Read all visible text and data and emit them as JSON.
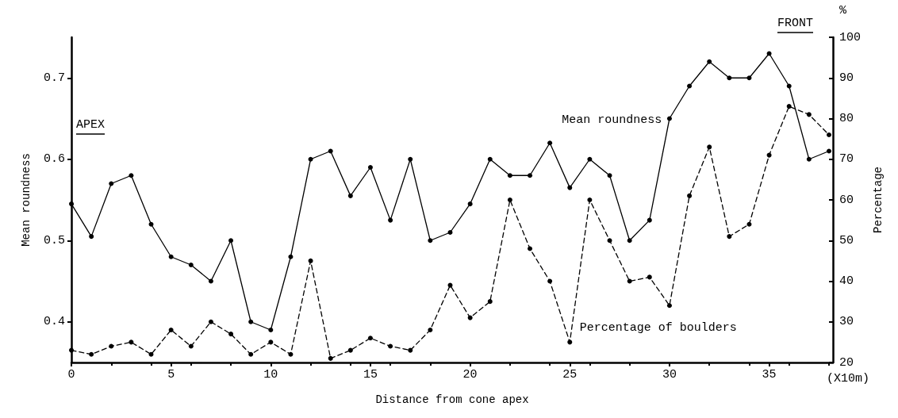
{
  "chart_data": {
    "type": "line",
    "xlabel": "Distance from cone apex",
    "ylabel": "Mean roundness",
    "y2label": "Percentage",
    "x": [
      0,
      1,
      2,
      3,
      4,
      5,
      6,
      7,
      8,
      9,
      10,
      11,
      12,
      13,
      14,
      15,
      16,
      17,
      18,
      19,
      20,
      21,
      22,
      23,
      24,
      25,
      26,
      27,
      28,
      29,
      30,
      31,
      32,
      33,
      34,
      35,
      36,
      37,
      38
    ],
    "series": [
      {
        "name": "Mean roundness",
        "color": "#000000",
        "line_style": "solid",
        "values": [
          0.545,
          0.505,
          0.57,
          0.58,
          0.52,
          0.48,
          0.47,
          0.45,
          0.5,
          0.4,
          0.39,
          0.48,
          0.6,
          0.61,
          0.555,
          0.59,
          0.525,
          0.6,
          0.5,
          0.51,
          0.545,
          0.6,
          0.58,
          0.58,
          0.62,
          0.565,
          0.6,
          0.58,
          0.5,
          0.525,
          0.65,
          0.69,
          0.72,
          0.7,
          0.7,
          0.73,
          0.69,
          0.6,
          0.61
        ]
      },
      {
        "name": "Percentage of boulders",
        "color": "#000000",
        "line_style": "dashed",
        "axis": "y2",
        "values": [
          23,
          22,
          24,
          25,
          22,
          28,
          24,
          30,
          27,
          22,
          25,
          22,
          45,
          21,
          23,
          26,
          24,
          23,
          28,
          39,
          31,
          35,
          60,
          48,
          40,
          25,
          60,
          50,
          40,
          41,
          34,
          61,
          73,
          51,
          54,
          71,
          83,
          81,
          76
        ]
      }
    ],
    "xlim": [
      0,
      38.2
    ],
    "xticks": [
      0,
      5,
      10,
      15,
      20,
      25,
      30,
      35
    ],
    "ylim": [
      0.35,
      0.75
    ],
    "yticks": [
      0.4,
      0.5,
      0.6,
      0.7
    ],
    "y2lim": [
      20,
      100
    ],
    "y2ticks": [
      20,
      30,
      40,
      50,
      60,
      70,
      80,
      90,
      100
    ],
    "marker": "circle",
    "grid": false,
    "legend": false,
    "annotations": [
      "APEX",
      "FRONT",
      "%",
      "(X10m)"
    ]
  }
}
